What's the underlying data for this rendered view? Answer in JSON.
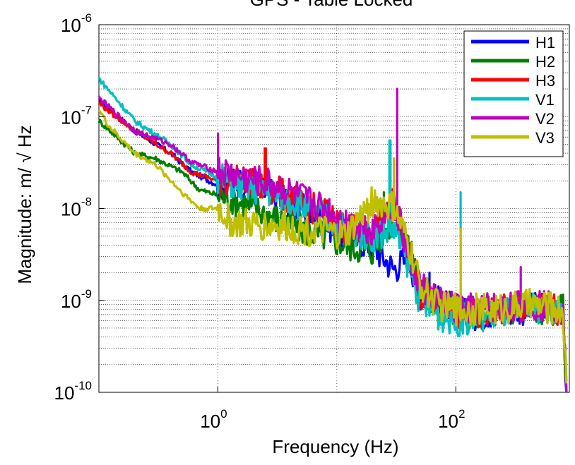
{
  "chart_data": {
    "type": "line",
    "title": "GPS - Table Locked",
    "xlabel": "Frequency (Hz)",
    "ylabel": "Magnitude: m/ √ Hz",
    "x_scale": "log",
    "y_scale": "log",
    "xlim": [
      0.1,
      900
    ],
    "ylim": [
      1e-10,
      1e-06
    ],
    "x_ticks": [
      {
        "value": 1,
        "base": "10",
        "exp": "0"
      },
      {
        "value": 100,
        "base": "10",
        "exp": "2"
      }
    ],
    "y_ticks": [
      {
        "value": 1e-10,
        "base": "10",
        "exp": "-10"
      },
      {
        "value": 1e-09,
        "base": "10",
        "exp": "-9"
      },
      {
        "value": 1e-08,
        "base": "10",
        "exp": "-8"
      },
      {
        "value": 1e-07,
        "base": "10",
        "exp": "-7"
      },
      {
        "value": 1e-06,
        "base": "10",
        "exp": "-6"
      }
    ],
    "grid": true,
    "legend_position": "top-right",
    "series": [
      {
        "name": "H1",
        "color": "#0000ff",
        "x": [
          0.1,
          0.2,
          0.4,
          0.6,
          1.0,
          1.5,
          2,
          3,
          5,
          8,
          12,
          20,
          30,
          40,
          50,
          70,
          100,
          150,
          200,
          300,
          400,
          550,
          700,
          800,
          850
        ],
        "y": [
          1.5e-07,
          7e-08,
          4e-08,
          2.5e-08,
          1.8e-08,
          2e-08,
          1.6e-08,
          1.4e-08,
          1e-08,
          7e-09,
          5e-09,
          4e-09,
          2.2e-09,
          3e-09,
          1.2e-09,
          1e-09,
          8e-10,
          7e-10,
          7.5e-10,
          8e-10,
          8e-10,
          8.5e-10,
          8e-10,
          8e-10,
          1e-10
        ],
        "peaks": [
          {
            "x": 60,
            "y": 2e-09
          },
          {
            "x": 23,
            "y": 1.2e-08
          }
        ]
      },
      {
        "name": "H2",
        "color": "#007f00",
        "x": [
          0.1,
          0.2,
          0.3,
          0.5,
          0.7,
          1.0,
          1.5,
          2,
          3,
          5,
          8,
          12,
          20,
          30,
          40,
          50,
          70,
          100,
          150,
          200,
          300,
          400,
          550,
          700,
          800,
          850
        ],
        "y": [
          9e-08,
          4e-08,
          3.5e-08,
          2.5e-08,
          1.6e-08,
          1.4e-08,
          1.2e-08,
          1e-08,
          8e-09,
          6e-09,
          5e-09,
          4e-09,
          3.5e-09,
          8e-09,
          4e-09,
          1.5e-09,
          1e-09,
          8e-10,
          7e-10,
          8e-10,
          8e-10,
          8.5e-10,
          8e-10,
          8e-10,
          8e-10,
          1e-10
        ],
        "peaks": [
          {
            "x": 25,
            "y": 1.5e-08
          },
          {
            "x": 40,
            "y": 5e-09
          }
        ]
      },
      {
        "name": "H3",
        "color": "#ff0000",
        "x": [
          0.1,
          0.2,
          0.4,
          0.6,
          1.0,
          1.5,
          2,
          3,
          5,
          8,
          12,
          20,
          30,
          40,
          50,
          70,
          100,
          150,
          200,
          300,
          400,
          550,
          700,
          800,
          850
        ],
        "y": [
          1.4e-07,
          7e-08,
          4e-08,
          2.5e-08,
          2e-08,
          2e-08,
          1.8e-08,
          1.6e-08,
          1.1e-08,
          9e-09,
          6e-09,
          5e-09,
          1.2e-08,
          4e-09,
          1.2e-09,
          9e-10,
          7e-10,
          7e-10,
          7.5e-10,
          8e-10,
          8e-10,
          8.5e-10,
          8e-10,
          8e-10,
          1e-10
        ],
        "peaks": [
          {
            "x": 2.5,
            "y": 4.5e-08
          },
          {
            "x": 30,
            "y": 3.5e-08
          }
        ]
      },
      {
        "name": "V1",
        "color": "#00c0c0",
        "x": [
          0.1,
          0.2,
          0.4,
          0.6,
          1.0,
          1.5,
          2,
          3,
          5,
          8,
          12,
          20,
          30,
          40,
          50,
          70,
          100,
          150,
          200,
          300,
          400,
          550,
          700,
          800,
          850
        ],
        "y": [
          2.6e-07,
          9e-08,
          5e-08,
          3e-08,
          2.2e-08,
          1.8e-08,
          1.6e-08,
          1.5e-08,
          1.1e-08,
          8e-09,
          6e-09,
          5e-09,
          6e-09,
          2.5e-09,
          1e-09,
          7e-10,
          6e-10,
          6.5e-10,
          7e-10,
          7.5e-10,
          8e-10,
          8.5e-10,
          8e-10,
          8e-10,
          1e-10
        ],
        "peaks": [
          {
            "x": 110,
            "y": 1.5e-08
          },
          {
            "x": 28,
            "y": 5.5e-08
          }
        ]
      },
      {
        "name": "V2",
        "color": "#bf00bf",
        "x": [
          0.1,
          0.2,
          0.4,
          0.6,
          1.0,
          1.5,
          2,
          3,
          5,
          8,
          12,
          20,
          30,
          40,
          50,
          70,
          100,
          150,
          200,
          300,
          400,
          550,
          700,
          800,
          850
        ],
        "y": [
          1.6e-07,
          7e-08,
          5e-08,
          3.2e-08,
          2.5e-08,
          2.2e-08,
          2e-08,
          1.8e-08,
          1.3e-08,
          1e-08,
          7e-09,
          6e-09,
          1.2e-08,
          3e-09,
          1.5e-09,
          1e-09,
          8e-10,
          8e-10,
          8.5e-10,
          8.5e-10,
          9e-10,
          9e-10,
          8.5e-10,
          8e-10,
          1e-10
        ],
        "peaks": [
          {
            "x": 1.0,
            "y": 6.5e-08
          },
          {
            "x": 32,
            "y": 2e-07
          },
          {
            "x": 350,
            "y": 2.3e-09
          }
        ]
      },
      {
        "name": "V3",
        "color": "#bfbf00",
        "x": [
          0.1,
          0.12,
          0.2,
          0.3,
          0.5,
          0.7,
          1.0,
          1.3,
          2,
          3,
          5,
          8,
          12,
          20,
          30,
          40,
          50,
          70,
          100,
          150,
          200,
          300,
          400,
          550,
          700,
          800,
          850
        ],
        "y": [
          1.2e-07,
          8e-08,
          4e-08,
          3e-08,
          1.5e-08,
          1e-08,
          1e-08,
          7e-09,
          6.5e-09,
          6.5e-09,
          6e-09,
          5.5e-09,
          5e-09,
          1.2e-08,
          1e-08,
          4e-09,
          1.5e-09,
          9e-10,
          8e-10,
          8e-10,
          8e-10,
          8.5e-10,
          9e-10,
          8.5e-10,
          8e-10,
          8e-10,
          1e-10
        ],
        "peaks": [
          {
            "x": 30,
            "y": 3.5e-08
          },
          {
            "x": 110,
            "y": 6e-09
          }
        ]
      }
    ]
  }
}
